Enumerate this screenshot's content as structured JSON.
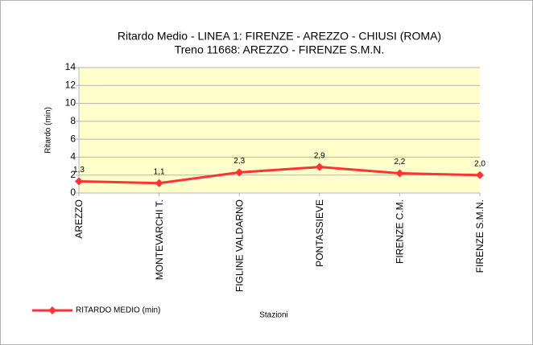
{
  "chart_data": {
    "type": "line",
    "title": "Ritardo Medio - LINEA 1: FIRENZE - AREZZO - CHIUSI (ROMA)",
    "subtitle": "Treno 11668: AREZZO - FIRENZE S.M.N.",
    "x_label": "Stazioni",
    "y_label": "Ritardo (min)",
    "categories": [
      "AREZZO",
      "MONTEVARCHI T.",
      "FIGLINE VALDARNO",
      "PONTASSIEVE",
      "FIRENZE C.M.",
      "FIRENZE S.M.N."
    ],
    "series": [
      {
        "name": "RITARDO MEDIO (min)",
        "color": "#ff3333",
        "values": [
          1.3,
          1.1,
          2.3,
          2.9,
          2.2,
          2.0
        ],
        "value_labels": [
          "1,3",
          "1,1",
          "2,3",
          "2,9",
          "2,2",
          "2,0"
        ]
      }
    ],
    "ylim": [
      0,
      14
    ],
    "yticks": [
      0,
      2,
      4,
      6,
      8,
      10,
      12,
      14
    ],
    "grid": true,
    "legend": "bottom-left",
    "plot_background": "#ffffcc"
  }
}
